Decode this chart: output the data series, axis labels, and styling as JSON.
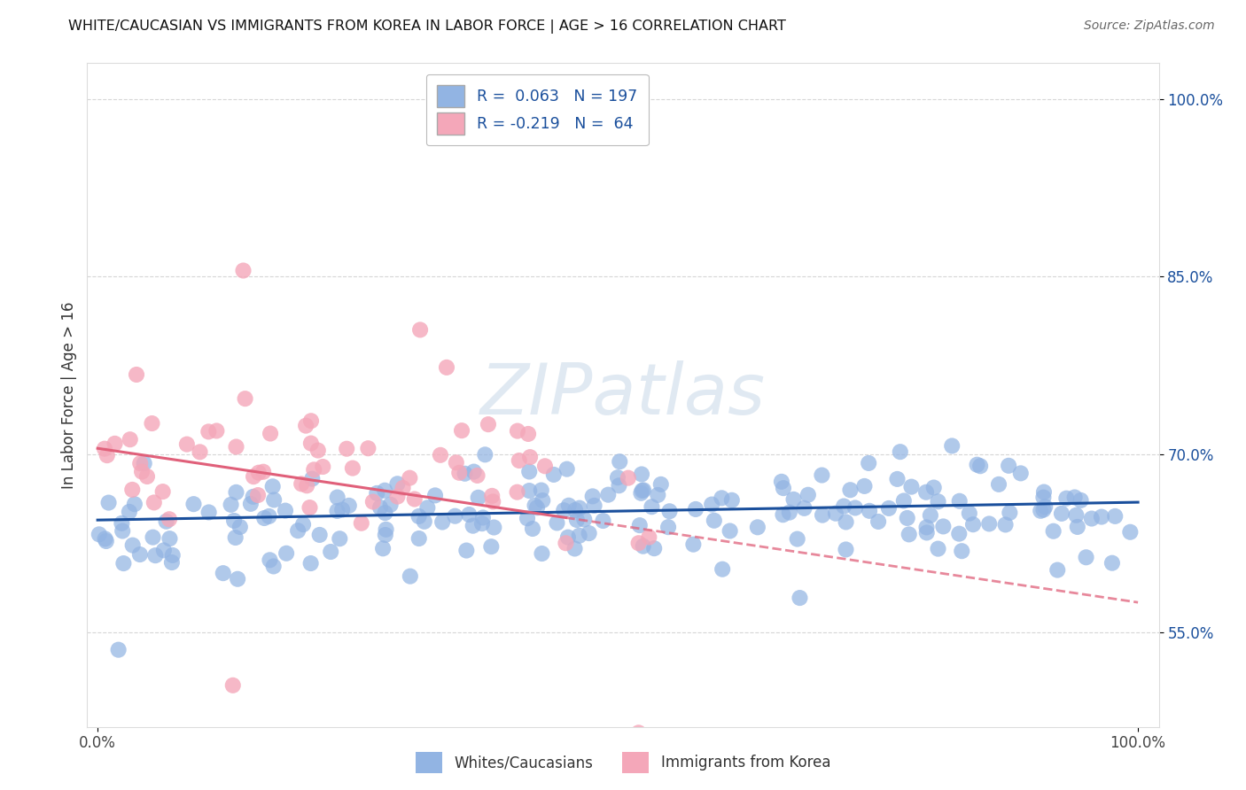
{
  "title": "WHITE/CAUCASIAN VS IMMIGRANTS FROM KOREA IN LABOR FORCE | AGE > 16 CORRELATION CHART",
  "source": "Source: ZipAtlas.com",
  "ylabel": "In Labor Force | Age > 16",
  "blue_R": 0.063,
  "blue_N": 197,
  "pink_R": -0.219,
  "pink_N": 64,
  "blue_color": "#92b4e3",
  "pink_color": "#f4a7b9",
  "blue_line_color": "#1a4f9c",
  "pink_line_color": "#e0607a",
  "legend_label_blue": "Whites/Caucasians",
  "legend_label_pink": "Immigrants from Korea",
  "watermark_text": "ZIPatlas",
  "background_color": "#ffffff",
  "grid_color": "#cccccc",
  "ylim_low": 0.47,
  "ylim_high": 1.03,
  "xlim_low": -0.01,
  "xlim_high": 1.02,
  "ytick_vals": [
    0.55,
    0.7,
    0.85,
    1.0
  ],
  "ytick_labels": [
    "55.0%",
    "70.0%",
    "85.0%",
    "100.0%"
  ]
}
